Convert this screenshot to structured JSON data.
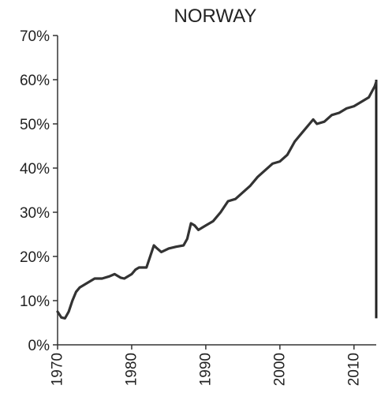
{
  "chart_data": {
    "type": "line",
    "title": "NORWAY",
    "xlabel": "",
    "ylabel": "",
    "xlim": [
      1970,
      2013
    ],
    "ylim": [
      0,
      70
    ],
    "x_ticks": [
      1970,
      1980,
      1990,
      2000,
      2010
    ],
    "x_tick_labels": [
      "1970",
      "1980",
      "1990",
      "2000",
      "2010"
    ],
    "y_ticks": [
      0,
      10,
      20,
      30,
      40,
      50,
      60,
      70
    ],
    "y_tick_labels": [
      "0%",
      "10%",
      "20%",
      "30%",
      "40%",
      "50%",
      "60%",
      "70%"
    ],
    "grid": false,
    "line_color": "#333333",
    "series": [
      {
        "x": [
          1970,
          1970.5,
          1971,
          1971.5,
          1972,
          1972.5,
          1973,
          1974,
          1975,
          1976,
          1977,
          1977.7,
          1978.5,
          1979,
          1980,
          1980.5,
          1981,
          1982,
          1982.5,
          1983,
          1983.3,
          1984,
          1985,
          1986,
          1987,
          1987.5,
          1988,
          1988.5,
          1989,
          1990,
          1991,
          1992,
          1993,
          1994,
          1995,
          1996,
          1997,
          1998,
          1999,
          2000,
          2001,
          2002,
          2003,
          2004,
          2004.5,
          2005,
          2006,
          2007,
          2008,
          2009,
          2010,
          2011,
          2012,
          2012.8,
          2013
        ],
        "y": [
          7.5,
          6.2,
          6.0,
          7.5,
          10.0,
          12.0,
          13.0,
          14.0,
          15.0,
          15.0,
          15.5,
          16.0,
          15.2,
          15.0,
          16.0,
          17.0,
          17.5,
          17.5,
          20.0,
          22.5,
          22.0,
          21.0,
          21.8,
          22.2,
          22.5,
          24.0,
          27.5,
          27.0,
          26.0,
          27.0,
          28.0,
          30.0,
          32.5,
          33.0,
          34.5,
          36.0,
          38.0,
          39.5,
          41.0,
          41.5,
          43.0,
          46.0,
          48.0,
          50.0,
          51.0,
          50.0,
          50.5,
          52.0,
          52.5,
          53.5,
          54.0,
          55.0,
          56.0,
          58.5,
          59.5
        ]
      }
    ]
  }
}
